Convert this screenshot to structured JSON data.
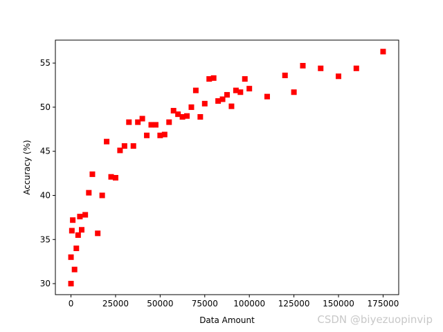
{
  "chart_data": {
    "type": "scatter",
    "xlabel": "Data Amount",
    "ylabel": "Accuracy (%)",
    "x": [
      0,
      0,
      500,
      1000,
      2000,
      3000,
      4000,
      5000,
      6000,
      8000,
      10000,
      12000,
      15000,
      17500,
      20000,
      22500,
      25000,
      27500,
      30000,
      32500,
      35000,
      37500,
      40000,
      42500,
      45000,
      47500,
      50000,
      52500,
      55000,
      57500,
      60000,
      62500,
      65000,
      67500,
      70000,
      72500,
      75000,
      77500,
      80000,
      82500,
      85000,
      87500,
      90000,
      92500,
      95000,
      97500,
      100000,
      110000,
      120000,
      125000,
      130000,
      140000,
      150000,
      160000,
      175000
    ],
    "y": [
      30.0,
      33.0,
      36.0,
      37.2,
      31.6,
      34.0,
      35.5,
      37.6,
      36.1,
      37.8,
      40.3,
      42.4,
      35.7,
      40.0,
      46.1,
      42.1,
      42.0,
      45.1,
      45.6,
      48.3,
      45.6,
      48.3,
      48.7,
      46.8,
      48.0,
      48.0,
      46.8,
      46.9,
      48.3,
      49.6,
      49.2,
      48.9,
      49.0,
      50.0,
      51.9,
      48.9,
      50.4,
      53.2,
      53.3,
      50.7,
      50.9,
      51.4,
      50.1,
      51.9,
      51.7,
      53.2,
      52.1,
      51.2,
      53.6,
      51.7,
      54.7,
      54.4,
      53.5,
      54.4,
      56.3
    ],
    "color": "#ff0000",
    "marker": "square",
    "xlim": [
      -8750,
      183750
    ],
    "ylim": [
      28.75,
      57.6
    ],
    "xticks": [
      0,
      25000,
      50000,
      75000,
      100000,
      125000,
      150000,
      175000
    ],
    "yticks": [
      30,
      35,
      40,
      45,
      50,
      55
    ],
    "watermark": "CSDN @biyezuopinvip"
  }
}
